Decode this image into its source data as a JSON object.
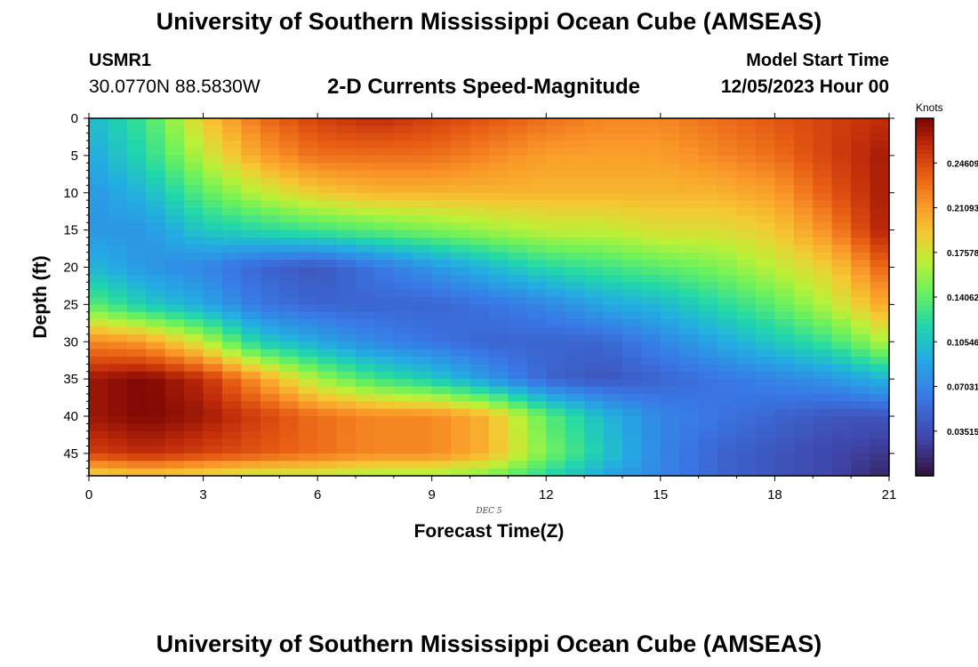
{
  "header": {
    "title": "University of Southern Mississippi Ocean Cube (AMSEAS)",
    "station": "USMR1",
    "coords": "30.0770N  88.5830W",
    "subtitle": "2-D Currents Speed-Magnitude",
    "start_label": "Model Start Time",
    "start_value": "12/05/2023 Hour 00"
  },
  "footer": {
    "title": "University of Southern Mississippi Ocean Cube (AMSEAS)"
  },
  "chart_data": {
    "type": "heatmap",
    "title": "2-D Currents Speed-Magnitude",
    "xlabel": "Forecast Time(Z)",
    "ylabel": "Depth (ft)",
    "xlim": [
      0,
      21
    ],
    "ylim": [
      0,
      48
    ],
    "x_ticks": [
      "0",
      "3",
      "6",
      "9",
      "12",
      "15",
      "18",
      "21"
    ],
    "y_ticks": [
      "0",
      "5",
      "10",
      "15",
      "20",
      "25",
      "30",
      "35",
      "40",
      "45"
    ],
    "date_annotation": "DEC 5",
    "colorbar": {
      "label": "Knots",
      "min": 0.0,
      "max": 0.2813,
      "ticks": [
        "0.24609",
        "0.21093",
        "0.17578",
        "0.14062",
        "0.10546",
        "0.07031",
        "0.03515"
      ],
      "tick_values": [
        0.24609,
        0.21093,
        0.17578,
        0.14062,
        0.10546,
        0.07031,
        0.03515
      ]
    },
    "hours": [
      0,
      1.5,
      3,
      4.5,
      6,
      7.5,
      9,
      10.5,
      12,
      13.5,
      15,
      16.5,
      18,
      19.5,
      21
    ],
    "depths": [
      0,
      5,
      10,
      15,
      20,
      25,
      30,
      35,
      40,
      45,
      48
    ],
    "speed_knots": [
      [
        0.1,
        0.13,
        0.19,
        0.23,
        0.25,
        0.26,
        0.25,
        0.24,
        0.23,
        0.22,
        0.22,
        0.23,
        0.24,
        0.25,
        0.26
      ],
      [
        0.09,
        0.12,
        0.17,
        0.21,
        0.23,
        0.23,
        0.23,
        0.22,
        0.21,
        0.21,
        0.21,
        0.22,
        0.23,
        0.25,
        0.27
      ],
      [
        0.08,
        0.1,
        0.14,
        0.17,
        0.19,
        0.2,
        0.2,
        0.2,
        0.2,
        0.2,
        0.2,
        0.2,
        0.21,
        0.24,
        0.27
      ],
      [
        0.08,
        0.08,
        0.11,
        0.12,
        0.13,
        0.14,
        0.15,
        0.16,
        0.17,
        0.17,
        0.18,
        0.18,
        0.19,
        0.22,
        0.27
      ],
      [
        0.1,
        0.08,
        0.07,
        0.05,
        0.04,
        0.06,
        0.08,
        0.1,
        0.12,
        0.13,
        0.14,
        0.15,
        0.17,
        0.19,
        0.24
      ],
      [
        0.14,
        0.11,
        0.09,
        0.06,
        0.05,
        0.05,
        0.05,
        0.06,
        0.07,
        0.09,
        0.1,
        0.12,
        0.14,
        0.17,
        0.21
      ],
      [
        0.22,
        0.21,
        0.17,
        0.11,
        0.09,
        0.07,
        0.06,
        0.05,
        0.05,
        0.05,
        0.07,
        0.09,
        0.11,
        0.13,
        0.17
      ],
      [
        0.27,
        0.28,
        0.26,
        0.21,
        0.16,
        0.13,
        0.11,
        0.08,
        0.05,
        0.04,
        0.05,
        0.06,
        0.07,
        0.08,
        0.1
      ],
      [
        0.27,
        0.28,
        0.27,
        0.25,
        0.23,
        0.22,
        0.22,
        0.2,
        0.14,
        0.1,
        0.07,
        0.06,
        0.05,
        0.04,
        0.04
      ],
      [
        0.25,
        0.26,
        0.25,
        0.24,
        0.23,
        0.22,
        0.22,
        0.2,
        0.15,
        0.11,
        0.07,
        0.05,
        0.04,
        0.03,
        0.02
      ],
      [
        0.18,
        0.19,
        0.18,
        0.17,
        0.17,
        0.16,
        0.16,
        0.15,
        0.12,
        0.09,
        0.07,
        0.05,
        0.04,
        0.03,
        0.01
      ]
    ]
  }
}
